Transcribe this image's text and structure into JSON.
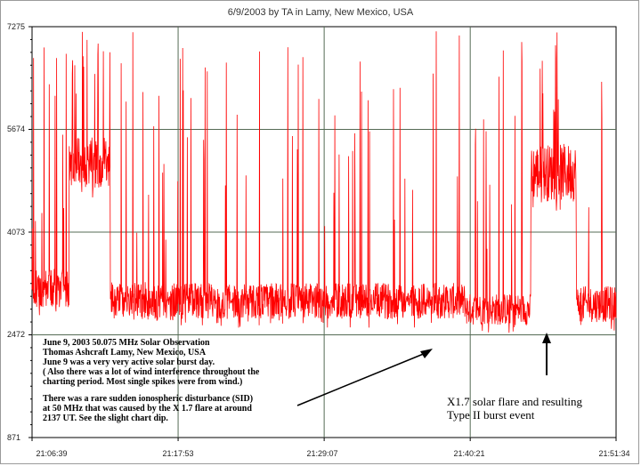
{
  "chart_data": {
    "type": "line",
    "title": "6/9/2003  by  TA  in  Lamy, New Mexico, USA",
    "xlabel": "",
    "ylabel": "",
    "x_ticks": [
      "21:06:39",
      "21:17:53",
      "21:29:07",
      "21:40:21",
      "21:51:34"
    ],
    "y_ticks": [
      "7275",
      "5674",
      "4073",
      "2472",
      "871"
    ],
    "ylim": [
      871,
      7275
    ],
    "xlim": [
      "21:06:39",
      "21:51:34"
    ],
    "grid": true,
    "series_color": "#ff0000",
    "segments": [
      {
        "start": "21:06:39",
        "end": "21:09:30",
        "baseline": 3200,
        "noise": 300
      },
      {
        "start": "21:09:30",
        "end": "21:12:40",
        "baseline": 5150,
        "noise": 400
      },
      {
        "start": "21:12:40",
        "end": "21:17:30",
        "baseline": 3000,
        "noise": 300
      },
      {
        "start": "21:17:30",
        "end": "21:40:00",
        "baseline": 3000,
        "noise": 280
      },
      {
        "start": "21:40:00",
        "end": "21:45:00",
        "baseline": 2870,
        "noise": 250
      },
      {
        "start": "21:45:00",
        "end": "21:48:30",
        "baseline": 5000,
        "noise": 450
      },
      {
        "start": "21:48:30",
        "end": "21:51:34",
        "baseline": 2950,
        "noise": 280
      }
    ],
    "peak_value": 7275,
    "dip_value": 2472
  },
  "annotations": {
    "note_lines": [
      "June 9, 2003    50.075 MHz  Solar Observation",
      "Thomas Ashcraft   Lamy, New Mexico, USA",
      "June 9 was a very very active solar burst day.",
      "( Also there was a lot of wind interference throughout the",
      "charting period. Most single spikes were from wind.)",
      "",
      "There was a rare sudden ionospheric disturbance (SID)",
      "at 50 MHz that was caused by the X 1.7 flare at around",
      "2137 UT. See the slight chart dip."
    ],
    "flare_label_lines": [
      "X1.7 solar flare and resulting",
      "Type II  burst event"
    ]
  }
}
